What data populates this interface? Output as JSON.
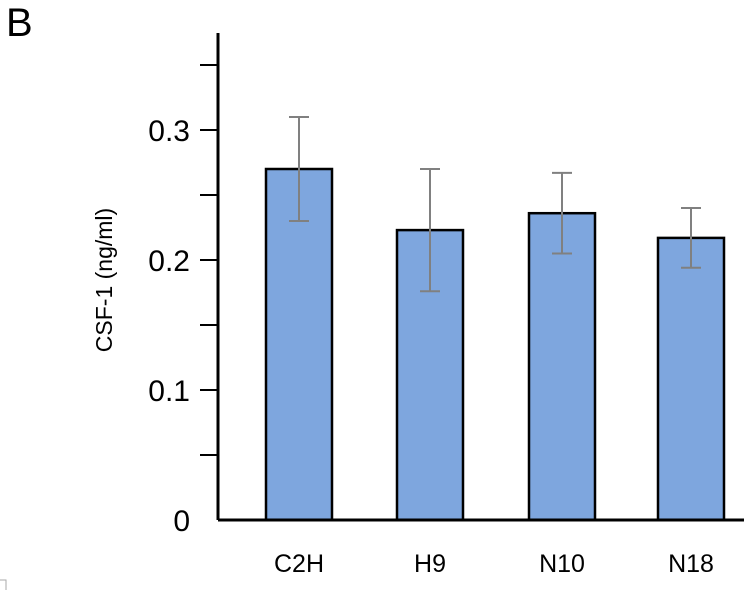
{
  "panel_label": "B",
  "chart_data": {
    "type": "bar",
    "categories": [
      "C2H",
      "H9",
      "N10",
      "N18"
    ],
    "values": [
      0.27,
      0.223,
      0.236,
      0.217
    ],
    "error": [
      0.04,
      0.047,
      0.031,
      0.023
    ],
    "ylabel": "CSF-1 (ng/ml)",
    "xlabel": "",
    "ylim": [
      0,
      0.35
    ],
    "yticks": [
      0,
      0.1,
      0.2,
      0.3
    ],
    "ytick_labels": [
      "0",
      "0.1",
      "0.2",
      "0.3"
    ],
    "minor_yticks": [
      0.05,
      0.15,
      0.25,
      0.35
    ],
    "grid": false,
    "colors": {
      "bar_fill": "#7ea6de",
      "bar_stroke": "#000000",
      "error_bar": "#808080"
    }
  }
}
